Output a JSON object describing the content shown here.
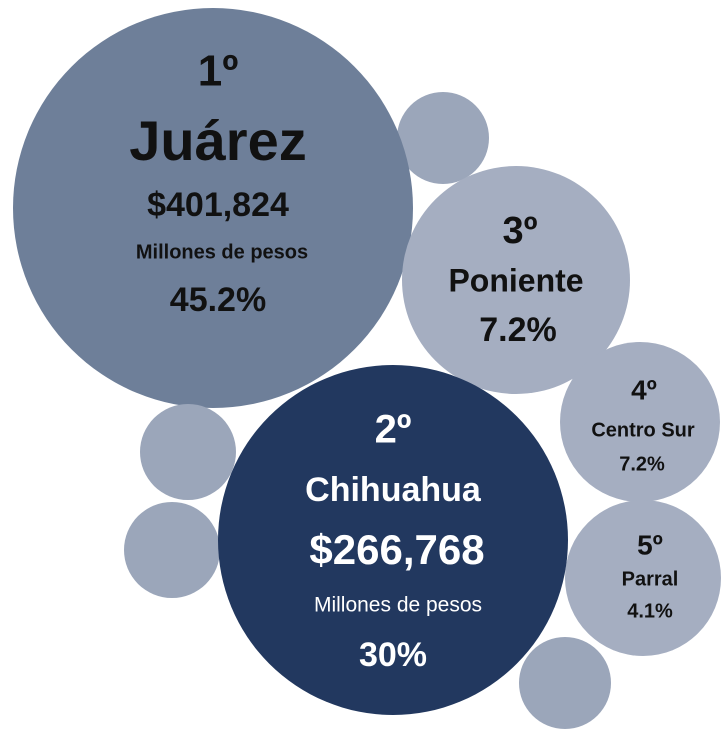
{
  "nodes": [
    {
      "rank": "1º",
      "name": "Juárez",
      "amount": "$401,824",
      "unit": "Millones de pesos",
      "share": "45.2%"
    },
    {
      "rank": "2º",
      "name": "Chihuahua",
      "amount": "$266,768",
      "unit": "Millones de pesos",
      "share": "30%"
    },
    {
      "rank": "3º",
      "name": "Poniente",
      "share": "7.2%"
    },
    {
      "rank": "4º",
      "name": "Centro Sur",
      "share": "7.2%"
    },
    {
      "rank": "5º",
      "name": "Parral",
      "share": "4.1%"
    }
  ]
}
